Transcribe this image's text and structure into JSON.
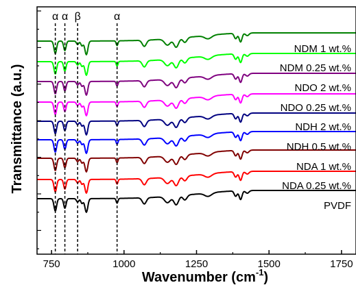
{
  "chart_data": {
    "type": "line",
    "title": "",
    "xlabel": "Wavenumber (cm",
    "xlabel_sup": "-1",
    "xlabel_close": ")",
    "ylabel": "Transmittance (a.u.)",
    "xlim": [
      700,
      1800
    ],
    "xticks": [
      750,
      1000,
      1250,
      1500,
      1750
    ],
    "grid": false,
    "legend": "labels beside each curve",
    "markers": [
      {
        "x": 763,
        "label": "α"
      },
      {
        "x": 796,
        "label": "α"
      },
      {
        "x": 840,
        "label": "β"
      },
      {
        "x": 976,
        "label": "α"
      }
    ],
    "series": [
      {
        "name": "PVDF",
        "color": "#000000"
      },
      {
        "name": "NDA 0.25 wt.%",
        "color": "#ff0000"
      },
      {
        "name": "NDA 1 wt.%",
        "color": "#800000"
      },
      {
        "name": "NDH 0.5 wt.%",
        "color": "#0000ff"
      },
      {
        "name": "NDH 2 wt.%",
        "color": "#000080"
      },
      {
        "name": "NDO 0.25 wt.%",
        "color": "#ff00ff"
      },
      {
        "name": "NDO 2 wt.%",
        "color": "#800080"
      },
      {
        "name": "NDM 0.25 wt.%",
        "color": "#00ff00"
      },
      {
        "name": "NDM 1 wt.%",
        "color": "#008000"
      }
    ]
  }
}
